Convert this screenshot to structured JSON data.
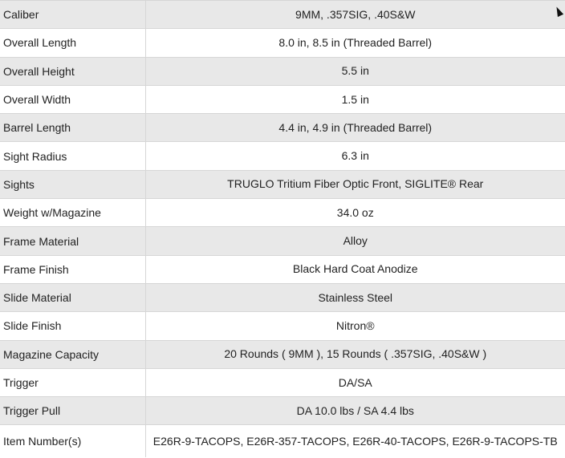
{
  "rows": [
    {
      "label": "Caliber",
      "value": "9MM, .357SIG, .40S&W"
    },
    {
      "label": "Overall Length",
      "value": "8.0 in, 8.5 in (Threaded Barrel)"
    },
    {
      "label": "Overall Height",
      "value": "5.5 in"
    },
    {
      "label": "Overall Width",
      "value": "1.5 in"
    },
    {
      "label": "Barrel Length",
      "value": "4.4 in, 4.9 in (Threaded Barrel)"
    },
    {
      "label": "Sight Radius",
      "value": "6.3 in"
    },
    {
      "label": "Sights",
      "value": "TRUGLO Tritium Fiber Optic Front, SIGLITE® Rear"
    },
    {
      "label": "Weight w/Magazine",
      "value": "34.0 oz"
    },
    {
      "label": "Frame Material",
      "value": "Alloy"
    },
    {
      "label": "Frame Finish",
      "value": "Black Hard Coat Anodize"
    },
    {
      "label": "Slide Material",
      "value": "Stainless Steel"
    },
    {
      "label": "Slide Finish",
      "value": "Nitron®"
    },
    {
      "label": "Magazine Capacity",
      "value": "20 Rounds ( 9MM ), 15 Rounds ( .357SIG, .40S&W )"
    },
    {
      "label": "Trigger",
      "value": "DA/SA"
    },
    {
      "label": "Trigger Pull",
      "value": "DA 10.0 lbs / SA 4.4 lbs"
    },
    {
      "label": "Item Number(s)",
      "value": "E26R-9-TACOPS, E26R-357-TACOPS, E26R-40-TACOPS, E26R-9-TACOPS-TB"
    }
  ]
}
